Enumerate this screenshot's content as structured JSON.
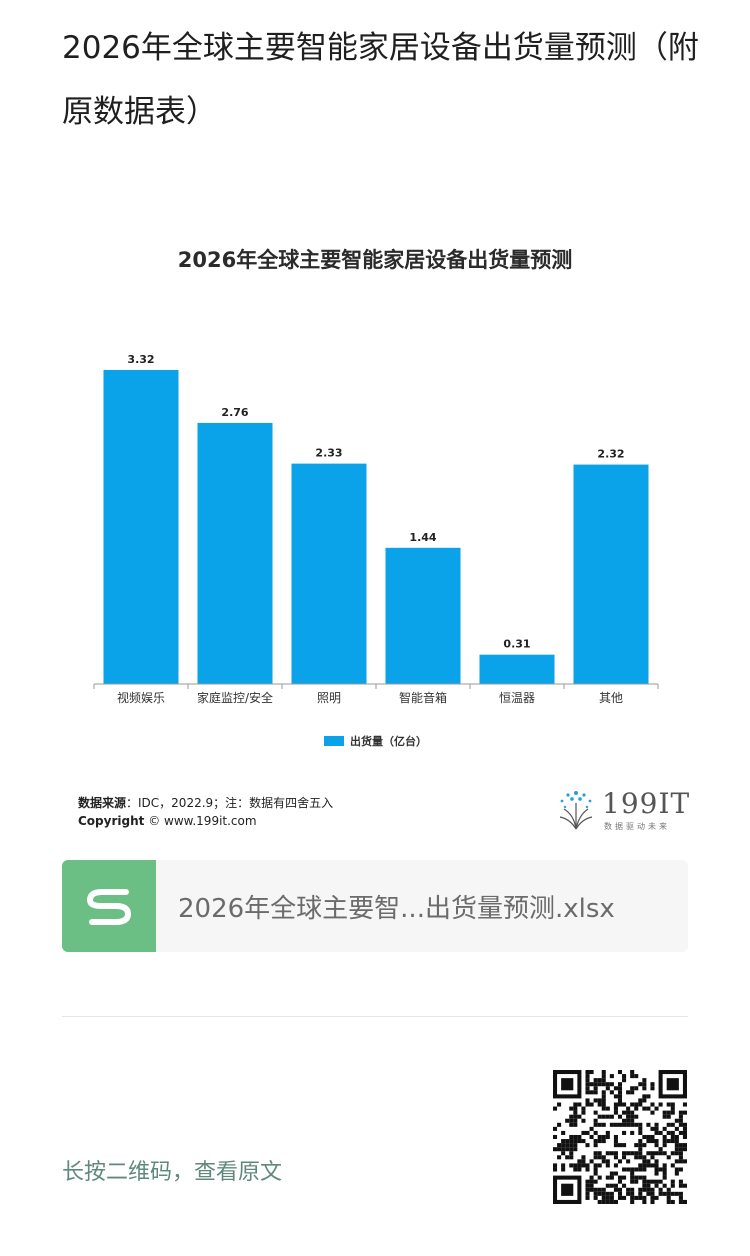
{
  "article": {
    "title": "2026年全球主要智能家居设备出货量预测（附原数据表）"
  },
  "chart_data": {
    "type": "bar",
    "title": "2026年全球主要智能家居设备出货量预测",
    "categories": [
      "视频娱乐",
      "家庭监控/安全",
      "照明",
      "智能音箱",
      "恒温器",
      "其他"
    ],
    "series": [
      {
        "name": "出货量（亿台）",
        "values": [
          3.32,
          2.76,
          2.33,
          1.44,
          0.31,
          2.32
        ]
      }
    ],
    "value_labels": [
      "3.32",
      "2.76",
      "2.33",
      "1.44",
      "0.31",
      "2.32"
    ],
    "ylim": [
      0,
      3.32
    ],
    "grid": false,
    "legend": "bottom-center",
    "bar_color": "#0aa2e8"
  },
  "chart_footer": {
    "source_label": "数据来源",
    "source_text": "：IDC，2022.9；注：数据有四舍五入",
    "copyright_label": "Copyright",
    "copyright_text": "© www.199it.com"
  },
  "logo": {
    "text": "199IT",
    "tagline": "数据驱动未来"
  },
  "file": {
    "name": "2026年全球主要智...出货量预测.xlsx",
    "icon": "spreadsheet-s-icon",
    "icon_color": "#6bbf84"
  },
  "footer": {
    "qr_hint": "长按二维码，查看原文",
    "qr_icon": "qr-code-icon"
  }
}
